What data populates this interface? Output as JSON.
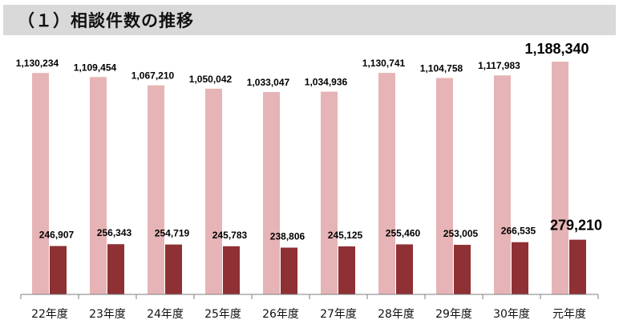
{
  "title": "（１）相談件数の推移",
  "colors": {
    "series_light": "#e6b4b6",
    "series_dark": "#8e3034",
    "axis": "#7f7f7f",
    "title_bg": "#d9d9d9"
  },
  "chart_data": {
    "type": "bar",
    "categories": [
      "22年度",
      "23年度",
      "24年度",
      "25年度",
      "26年度",
      "27年度",
      "28年度",
      "29年度",
      "30年度",
      "元年度"
    ],
    "series": [
      {
        "values": [
          1130234,
          1109454,
          1067210,
          1050042,
          1033047,
          1034936,
          1130741,
          1104758,
          1117983,
          1188340
        ],
        "labels": [
          "1,130,234",
          "1,109,454",
          "1,067,210",
          "1,050,042",
          "1,033,047",
          "1,034,936",
          "1,130,741",
          "1,104,758",
          "1,117,983",
          "1,188,340"
        ]
      },
      {
        "values": [
          246907,
          256343,
          254719,
          245783,
          238806,
          245125,
          255460,
          253005,
          266535,
          279210
        ],
        "labels": [
          "246,907",
          "256,343",
          "254,719",
          "245,783",
          "238,806",
          "245,125",
          "255,460",
          "253,005",
          "266,535",
          "279,210"
        ]
      }
    ],
    "ylim": [
      0,
      1250000
    ],
    "grid": false,
    "legend": "none",
    "emphasized_category": "元年度"
  }
}
